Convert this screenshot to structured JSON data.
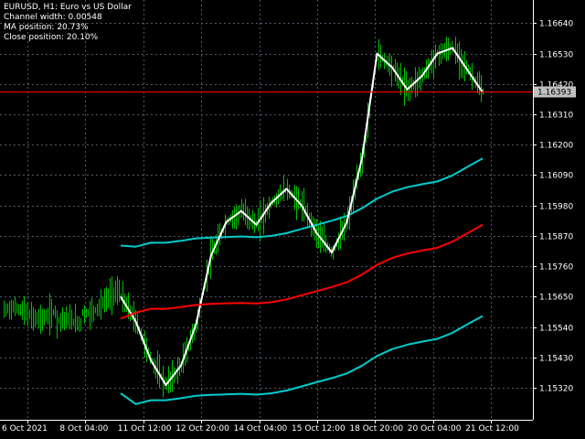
{
  "info": {
    "line1": "EURUSD, H1:  Euro vs US Dollar",
    "line2": "Channel width: 0.00548",
    "line3": "MA position: 20.73%",
    "line4": "Close position: 20.10%"
  },
  "colors": {
    "background": "#000000",
    "grid": "#4a5a6a",
    "candles": "#00c000",
    "upper_band": "#00cccc",
    "lower_band": "#00cccc",
    "ma": "#ff0000",
    "smooth": "#ffffff",
    "price_line": "#ff0000",
    "axis_text": "#ffffff",
    "badge": "#c0c0c0"
  },
  "chart_data": {
    "type": "line",
    "symbol": "EURUSD",
    "timeframe": "H1",
    "ylim": [
      1.15204,
      1.16724
    ],
    "y_ticks": [
      "1.16640",
      "1.16530",
      "1.16420",
      "1.16310",
      "1.16200",
      "1.16090",
      "1.15980",
      "1.15870",
      "1.15760",
      "1.15650",
      "1.15540",
      "1.15430",
      "1.15320"
    ],
    "x_ticks": [
      "6 Oct 2021",
      "8 Oct 04:00",
      "11 Oct 12:00",
      "12 Oct 20:00",
      "14 Oct 04:00",
      "15 Oct 12:00",
      "18 Oct 20:00",
      "20 Oct 04:00",
      "21 Oct 12:00"
    ],
    "current_price": "1.16393",
    "grid": true,
    "series": [
      {
        "values": [
          1.15595,
          1.15591,
          1.15605,
          1.15605,
          1.15612,
          1.15621,
          1.15624,
          1.15626,
          1.15628,
          1.15625,
          1.1563,
          1.1564,
          1.15655,
          1.1567,
          1.15685,
          1.15702,
          1.1573,
          1.15765,
          1.1579,
          1.15806,
          1.15817,
          1.15827,
          1.15849,
          1.1588,
          1.1591
        ]
      },
      {
        "values": [
          1.1545,
          1.15411,
          1.15425,
          1.15425,
          1.15432,
          1.15441,
          1.15444,
          1.15446,
          1.15448,
          1.15445,
          1.1545,
          1.1546,
          1.15475,
          1.1549,
          1.15505,
          1.15522,
          1.1555,
          1.15585,
          1.1561,
          1.15626,
          1.15637,
          1.15647,
          1.15669,
          1.157,
          1.1573
        ]
      },
      {
        "values": [
          1.1565,
          1.1556,
          1.1542,
          1.1533,
          1.154,
          1.1555,
          1.158,
          1.1592,
          1.1596,
          1.1591,
          1.1599,
          1.1604,
          1.1598,
          1.1588,
          1.1581,
          1.1592,
          1.1615,
          1.1653,
          1.1648,
          1.164,
          1.1645,
          1.1653,
          1.1655,
          1.1647,
          1.1639
        ]
      },
      {
        "values": [
          1.1557,
          1.15592,
          1.15606,
          1.15606,
          1.15612,
          1.1562,
          1.15624,
          1.15626,
          1.15627,
          1.15625,
          1.1563,
          1.1564,
          1.15655,
          1.1567,
          1.15685,
          1.15702,
          1.1573,
          1.15765,
          1.1579,
          1.15806,
          1.15817,
          1.15827,
          1.15849,
          1.1588,
          1.1591
        ]
      }
    ]
  }
}
